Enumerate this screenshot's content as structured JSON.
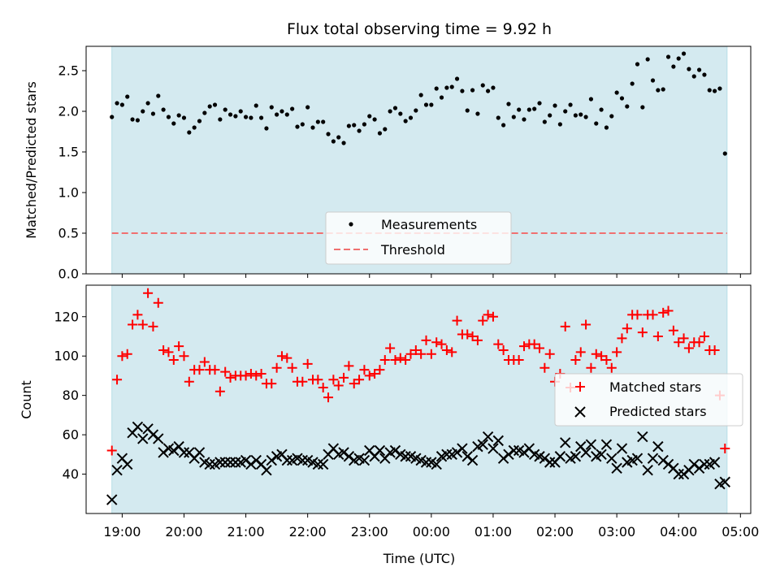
{
  "chart_data": [
    {
      "type": "scatter",
      "title": "Flux total observing time = 9.92 h",
      "ylabel": "Matched/Predicted stars",
      "xlabel": "",
      "ylim": [
        0,
        2.8
      ],
      "yticks": [
        "0.0",
        "0.5",
        "1.0",
        "1.5",
        "2.0",
        "2.5"
      ],
      "legend_position": "lower-center",
      "shaded_span": [
        "18:50",
        "04:47"
      ],
      "shade_color": "#d4eaf0",
      "series": [
        {
          "name": "Measurements",
          "marker": "dot",
          "color": "#000000",
          "x": [
            "18:50",
            "18:55",
            "19:00",
            "19:05",
            "19:10",
            "19:15",
            "19:20",
            "19:25",
            "19:30",
            "19:35",
            "19:40",
            "19:45",
            "19:50",
            "19:55",
            "20:00",
            "20:05",
            "20:10",
            "20:15",
            "20:20",
            "20:25",
            "20:30",
            "20:35",
            "20:40",
            "20:45",
            "20:50",
            "20:55",
            "21:00",
            "21:05",
            "21:10",
            "21:15",
            "21:20",
            "21:25",
            "21:30",
            "21:35",
            "21:40",
            "21:45",
            "21:50",
            "21:55",
            "22:00",
            "22:05",
            "22:10",
            "22:15",
            "22:20",
            "22:25",
            "22:30",
            "22:35",
            "22:40",
            "22:45",
            "22:50",
            "22:55",
            "23:00",
            "23:05",
            "23:10",
            "23:15",
            "23:20",
            "23:25",
            "23:30",
            "23:35",
            "23:40",
            "23:45",
            "23:50",
            "23:55",
            "00:00",
            "00:05",
            "00:10",
            "00:15",
            "00:20",
            "00:25",
            "00:30",
            "00:35",
            "00:40",
            "00:45",
            "00:50",
            "00:55",
            "01:00",
            "01:05",
            "01:10",
            "01:15",
            "01:20",
            "01:25",
            "01:30",
            "01:35",
            "01:40",
            "01:45",
            "01:50",
            "01:55",
            "02:00",
            "02:05",
            "02:10",
            "02:15",
            "02:20",
            "02:25",
            "02:30",
            "02:35",
            "02:40",
            "02:45",
            "02:50",
            "02:55",
            "03:00",
            "03:05",
            "03:10",
            "03:15",
            "03:20",
            "03:25",
            "03:30",
            "03:35",
            "03:40",
            "03:45",
            "03:50",
            "03:55",
            "04:00",
            "04:05",
            "04:10",
            "04:15",
            "04:20",
            "04:25",
            "04:30",
            "04:35",
            "04:40",
            "04:45"
          ],
          "y": [
            1.93,
            2.1,
            2.08,
            2.18,
            1.9,
            1.89,
            2.0,
            2.1,
            1.97,
            2.19,
            2.02,
            1.93,
            1.85,
            1.95,
            1.92,
            1.74,
            1.8,
            1.88,
            1.98,
            2.06,
            2.08,
            1.9,
            2.02,
            1.96,
            1.94,
            2.0,
            1.93,
            1.92,
            2.07,
            1.92,
            1.79,
            2.05,
            1.96,
            2.0,
            1.96,
            2.03,
            1.81,
            1.84,
            2.05,
            1.8,
            1.87,
            1.87,
            1.72,
            1.63,
            1.68,
            1.61,
            1.82,
            1.83,
            1.76,
            1.84,
            1.94,
            1.9,
            1.73,
            1.78,
            2.0,
            2.04,
            1.97,
            1.88,
            1.92,
            2.01,
            2.2,
            2.08,
            2.08,
            2.28,
            2.17,
            2.29,
            2.3,
            2.4,
            2.25,
            2.01,
            2.26,
            1.97,
            2.32,
            2.25,
            2.29,
            1.92,
            1.83,
            2.09,
            1.93,
            2.02,
            1.9,
            2.02,
            2.03,
            2.1,
            1.87,
            1.95,
            2.07,
            1.84,
            2.0,
            2.08,
            1.95,
            1.96,
            1.93,
            2.15,
            1.85,
            2.02,
            1.8,
            1.94,
            2.23,
            2.16,
            2.06,
            2.34,
            2.58,
            2.05,
            2.64,
            2.38,
            2.26,
            2.27,
            2.67,
            2.55,
            2.65,
            2.71,
            2.52,
            2.43,
            2.51,
            2.45,
            2.26,
            2.25,
            2.28,
            1.48
          ]
        },
        {
          "name": "Threshold",
          "marker": "dashed-line",
          "color": "#f07070",
          "value": 0.5
        }
      ]
    },
    {
      "type": "scatter",
      "title": "",
      "ylabel": "Count",
      "xlabel": "Time (UTC)",
      "ylim": [
        20,
        136
      ],
      "yticks": [
        "40",
        "60",
        "80",
        "100",
        "120"
      ],
      "xlim": [
        "18:25",
        "05:10"
      ],
      "xticks": [
        "19:00",
        "20:00",
        "21:00",
        "22:00",
        "23:00",
        "00:00",
        "01:00",
        "02:00",
        "03:00",
        "04:00",
        "05:00"
      ],
      "legend_position": "center-right",
      "series": [
        {
          "name": "Matched stars",
          "marker": "plus",
          "color": "#ff0000",
          "x": [
            "18:50",
            "18:55",
            "19:00",
            "19:05",
            "19:10",
            "19:15",
            "19:20",
            "19:25",
            "19:30",
            "19:35",
            "19:40",
            "19:45",
            "19:50",
            "19:55",
            "20:00",
            "20:05",
            "20:10",
            "20:15",
            "20:20",
            "20:25",
            "20:30",
            "20:35",
            "20:40",
            "20:45",
            "20:50",
            "20:55",
            "21:00",
            "21:05",
            "21:10",
            "21:15",
            "21:20",
            "21:25",
            "21:30",
            "21:35",
            "21:40",
            "21:45",
            "21:50",
            "21:55",
            "22:00",
            "22:05",
            "22:10",
            "22:15",
            "22:20",
            "22:25",
            "22:30",
            "22:35",
            "22:40",
            "22:45",
            "22:50",
            "22:55",
            "23:00",
            "23:05",
            "23:10",
            "23:15",
            "23:20",
            "23:25",
            "23:30",
            "23:35",
            "23:40",
            "23:45",
            "23:50",
            "23:55",
            "00:00",
            "00:05",
            "00:10",
            "00:15",
            "00:20",
            "00:25",
            "00:30",
            "00:35",
            "00:40",
            "00:45",
            "00:50",
            "00:55",
            "01:00",
            "01:05",
            "01:10",
            "01:15",
            "01:20",
            "01:25",
            "01:30",
            "01:35",
            "01:40",
            "01:45",
            "01:50",
            "01:55",
            "02:00",
            "02:05",
            "02:10",
            "02:15",
            "02:20",
            "02:25",
            "02:30",
            "02:35",
            "02:40",
            "02:45",
            "02:50",
            "02:55",
            "03:00",
            "03:05",
            "03:10",
            "03:15",
            "03:20",
            "03:25",
            "03:30",
            "03:35",
            "03:40",
            "03:45",
            "03:50",
            "03:55",
            "04:00",
            "04:05",
            "04:10",
            "04:15",
            "04:20",
            "04:25",
            "04:30",
            "04:35",
            "04:40",
            "04:45"
          ],
          "y": [
            52,
            88,
            100,
            101,
            116,
            121,
            116,
            132,
            115,
            127,
            103,
            102,
            98,
            105,
            100,
            87,
            93,
            93,
            97,
            93,
            93,
            82,
            92,
            89,
            90,
            90,
            90,
            91,
            90,
            91,
            86,
            86,
            94,
            100,
            99,
            94,
            87,
            87,
            96,
            88,
            88,
            84,
            79,
            88,
            85,
            89,
            95,
            86,
            88,
            93,
            90,
            91,
            93,
            98,
            104,
            98,
            99,
            98,
            101,
            103,
            101,
            108,
            101,
            107,
            106,
            103,
            102,
            118,
            111,
            111,
            110,
            108,
            118,
            121,
            120,
            106,
            103,
            98,
            98,
            98,
            105,
            106,
            106,
            104,
            94,
            101,
            87,
            91,
            115,
            84,
            98,
            102,
            116,
            94,
            101,
            100,
            98,
            94,
            102,
            109,
            114,
            121,
            121,
            112,
            121,
            121,
            110,
            122,
            123,
            113,
            107,
            109,
            104,
            107,
            107,
            110,
            103,
            103,
            80,
            53
          ]
        },
        {
          "name": "Predicted stars",
          "marker": "x",
          "color": "#000000",
          "x": [
            "18:50",
            "18:55",
            "19:00",
            "19:05",
            "19:10",
            "19:15",
            "19:20",
            "19:25",
            "19:30",
            "19:35",
            "19:40",
            "19:45",
            "19:50",
            "19:55",
            "20:00",
            "20:05",
            "20:10",
            "20:15",
            "20:20",
            "20:25",
            "20:30",
            "20:35",
            "20:40",
            "20:45",
            "20:50",
            "20:55",
            "21:00",
            "21:05",
            "21:10",
            "21:15",
            "21:20",
            "21:25",
            "21:30",
            "21:35",
            "21:40",
            "21:45",
            "21:50",
            "21:55",
            "22:00",
            "22:05",
            "22:10",
            "22:15",
            "22:20",
            "22:25",
            "22:30",
            "22:35",
            "22:40",
            "22:45",
            "22:50",
            "22:55",
            "23:00",
            "23:05",
            "23:10",
            "23:15",
            "23:20",
            "23:25",
            "23:30",
            "23:35",
            "23:40",
            "23:45",
            "23:50",
            "23:55",
            "00:00",
            "00:05",
            "00:10",
            "00:15",
            "00:20",
            "00:25",
            "00:30",
            "00:35",
            "00:40",
            "00:45",
            "00:50",
            "00:55",
            "01:00",
            "01:05",
            "01:10",
            "01:15",
            "01:20",
            "01:25",
            "01:30",
            "01:35",
            "01:40",
            "01:45",
            "01:50",
            "01:55",
            "02:00",
            "02:05",
            "02:10",
            "02:15",
            "02:20",
            "02:25",
            "02:30",
            "02:35",
            "02:40",
            "02:45",
            "02:50",
            "02:55",
            "03:00",
            "03:05",
            "03:10",
            "03:15",
            "03:20",
            "03:25",
            "03:30",
            "03:35",
            "03:40",
            "03:45",
            "03:50",
            "03:55",
            "04:00",
            "04:05",
            "04:10",
            "04:15",
            "04:20",
            "04:25",
            "04:30",
            "04:35",
            "04:40",
            "04:45"
          ],
          "y": [
            27,
            42,
            48,
            45,
            61,
            64,
            58,
            63,
            60,
            58,
            51,
            53,
            52,
            54,
            51,
            51,
            48,
            51,
            46,
            45,
            45,
            46,
            46,
            46,
            46,
            46,
            47,
            45,
            47,
            45,
            42,
            47,
            49,
            50,
            47,
            47,
            48,
            47,
            47,
            46,
            45,
            45,
            50,
            53,
            50,
            51,
            49,
            47,
            48,
            47,
            52,
            49,
            52,
            48,
            51,
            52,
            50,
            49,
            49,
            48,
            47,
            46,
            46,
            45,
            49,
            50,
            50,
            51,
            53,
            49,
            47,
            54,
            55,
            59,
            53,
            57,
            48,
            50,
            52,
            52,
            51,
            53,
            50,
            49,
            48,
            46,
            46,
            49,
            56,
            48,
            49,
            54,
            51,
            55,
            49,
            50,
            55,
            48,
            43,
            53,
            46,
            47,
            48,
            59,
            42,
            48,
            54,
            47,
            45,
            43,
            40,
            40,
            42,
            45,
            43,
            45,
            45,
            46,
            35,
            36
          ]
        }
      ]
    }
  ]
}
